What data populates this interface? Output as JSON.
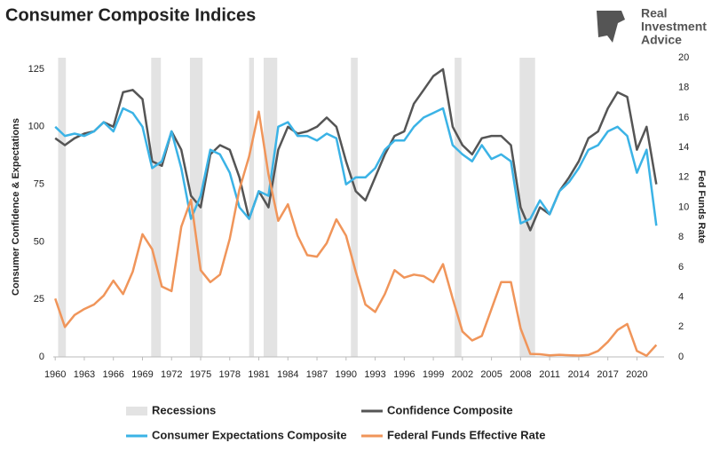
{
  "logo": [
    "Real",
    "Investment",
    "Advice"
  ],
  "chart_data": {
    "type": "line",
    "title": "Consumer Composite Indices",
    "ylabel": "Consumer Confidence & Expectations",
    "y2label": "Fed Funds Rate",
    "x": [
      1960,
      1961,
      1962,
      1963,
      1964,
      1965,
      1966,
      1967,
      1968,
      1969,
      1970,
      1971,
      1972,
      1973,
      1974,
      1975,
      1976,
      1977,
      1978,
      1979,
      1980,
      1981,
      1982,
      1983,
      1984,
      1985,
      1986,
      1987,
      1988,
      1989,
      1990,
      1991,
      1992,
      1993,
      1994,
      1995,
      1996,
      1997,
      1998,
      1999,
      2000,
      2001,
      2002,
      2003,
      2004,
      2005,
      2006,
      2007,
      2008,
      2009,
      2010,
      2011,
      2012,
      2013,
      2014,
      2015,
      2016,
      2017,
      2018,
      2019,
      2020,
      2021,
      2022
    ],
    "xlim": [
      1959.8,
      2022.8
    ],
    "xticks": [
      1960,
      1963,
      1966,
      1969,
      1972,
      1975,
      1978,
      1981,
      1984,
      1987,
      1990,
      1993,
      1996,
      1999,
      2002,
      2005,
      2008,
      2011,
      2014,
      2017,
      2020
    ],
    "ylim": [
      0,
      130
    ],
    "yticks": [
      0,
      25,
      50,
      75,
      100,
      125
    ],
    "y2lim": [
      0,
      20
    ],
    "y2ticks": [
      0,
      2,
      4,
      6,
      8,
      10,
      12,
      14,
      16,
      18,
      20
    ],
    "recessions": {
      "name": "Recessions",
      "color": "#e3e3e3",
      "spans": [
        [
          1960.3,
          1961.1
        ],
        [
          1969.9,
          1970.9
        ],
        [
          1973.9,
          1975.2
        ],
        [
          1980.0,
          1980.5
        ],
        [
          1981.5,
          1982.9
        ],
        [
          1990.5,
          1991.2
        ],
        [
          2001.2,
          2001.9
        ],
        [
          2007.9,
          2009.5
        ]
      ]
    },
    "series": [
      {
        "name": "Confidence Composite",
        "color": "#555555",
        "values": [
          95,
          92,
          95,
          97,
          98,
          102,
          100,
          115,
          116,
          112,
          85,
          83,
          98,
          90,
          70,
          65,
          88,
          92,
          90,
          78,
          60,
          72,
          65,
          90,
          100,
          97,
          98,
          100,
          104,
          100,
          85,
          72,
          68,
          78,
          88,
          96,
          98,
          110,
          116,
          122,
          125,
          100,
          92,
          88,
          95,
          96,
          96,
          92,
          65,
          55,
          65,
          62,
          72,
          78,
          85,
          95,
          98,
          108,
          115,
          113,
          90,
          100,
          75
        ]
      },
      {
        "name": "Consumer Expectations Composite",
        "color": "#3bb3e6",
        "values": [
          100,
          96,
          97,
          96,
          98,
          102,
          98,
          108,
          106,
          100,
          82,
          85,
          98,
          82,
          60,
          70,
          90,
          88,
          80,
          65,
          60,
          72,
          70,
          100,
          102,
          96,
          96,
          94,
          97,
          95,
          75,
          78,
          78,
          82,
          90,
          94,
          94,
          100,
          104,
          106,
          108,
          92,
          88,
          85,
          92,
          86,
          88,
          85,
          58,
          60,
          68,
          62,
          72,
          76,
          82,
          90,
          92,
          98,
          100,
          96,
          80,
          90,
          57
        ]
      },
      {
        "name": "Federal Funds Effective Rate",
        "color": "#f0955a",
        "axis": "y2",
        "values": [
          3.9,
          2.0,
          2.8,
          3.2,
          3.5,
          4.1,
          5.1,
          4.2,
          5.7,
          8.2,
          7.2,
          4.7,
          4.4,
          8.7,
          10.5,
          5.8,
          5.0,
          5.5,
          7.9,
          11.2,
          13.4,
          16.4,
          12.2,
          9.1,
          10.2,
          8.1,
          6.8,
          6.7,
          7.6,
          9.2,
          8.1,
          5.7,
          3.5,
          3.0,
          4.2,
          5.8,
          5.3,
          5.5,
          5.4,
          5.0,
          6.2,
          3.9,
          1.7,
          1.1,
          1.4,
          3.2,
          5.0,
          5.0,
          1.9,
          0.2,
          0.18,
          0.1,
          0.14,
          0.11,
          0.09,
          0.13,
          0.4,
          1.0,
          1.8,
          2.2,
          0.4,
          0.08,
          0.8
        ]
      }
    ]
  }
}
